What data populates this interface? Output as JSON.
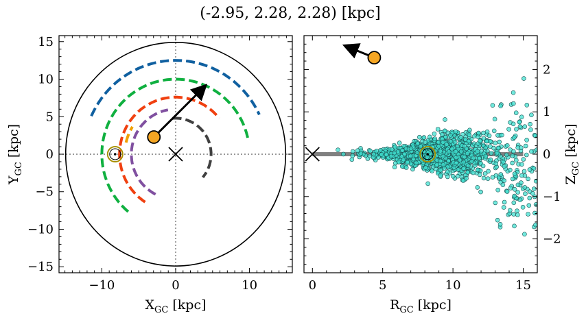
{
  "figure": {
    "title": "(-2.95, 2.28, 2.28) [kpc]"
  },
  "chart_data": [
    {
      "type": "line",
      "panel": "left",
      "xlabel_main": "X",
      "xlabel_sub": "GC",
      "xlabel_unit": " [kpc]",
      "ylabel_main": "Y",
      "ylabel_sub": "GC",
      "ylabel_unit": " [kpc]",
      "xlim": [
        -15.8,
        15.8
      ],
      "ylim": [
        -15.8,
        15.8
      ],
      "xticks": [
        -10,
        0,
        10
      ],
      "yticks": [
        -15,
        -10,
        -5,
        0,
        5,
        10,
        15
      ],
      "tick_labels_x": [
        "−10",
        "0",
        "10"
      ],
      "tick_labels_y": [
        "−15",
        "−10",
        "−5",
        "0",
        "5",
        "10",
        "15"
      ],
      "boundary_circle_radius": 14.9,
      "guide_lines": {
        "x0": true,
        "y0": true,
        "style": "dotted"
      },
      "arms": [
        {
          "color": "#1060a0",
          "radius": 12.5,
          "start_deg": 156,
          "end_deg": 25
        },
        {
          "color": "#10b040",
          "radius": 10.0,
          "start_deg": 210,
          "end_deg": 10
        },
        {
          "color": "#10b040",
          "radius": 10.0,
          "start_deg": 230,
          "end_deg": 212
        },
        {
          "color": "#f04010",
          "radius": 7.6,
          "start_deg": 237,
          "end_deg": 39
        },
        {
          "color": "#f0a000",
          "radius": 6.9,
          "start_deg": 167,
          "end_deg": 148
        },
        {
          "color": "#8050a0",
          "radius": 6.0,
          "start_deg": 243,
          "end_deg": 100
        },
        {
          "color": "#404040",
          "radius": 4.8,
          "start_deg": 95,
          "end_deg": -40
        }
      ],
      "sun": {
        "x": -8.2,
        "y": 0.0
      },
      "galactic_center": {
        "x": 0.0,
        "y": 0.0
      },
      "object": {
        "x": -2.95,
        "y": 2.28,
        "color": "#f5a623"
      },
      "velocity_arrow": {
        "x0": -2.95,
        "y0": 2.28,
        "x1": 3.9,
        "y1": 9.0
      }
    },
    {
      "type": "scatter",
      "panel": "right",
      "xlabel_main": "R",
      "xlabel_sub": "GC",
      "xlabel_unit": " [kpc]",
      "ylabel_main": "Z",
      "ylabel_sub": "GC",
      "ylabel_unit": " [kpc]",
      "xlim": [
        -0.6,
        16.0
      ],
      "ylim": [
        -2.8,
        2.8
      ],
      "xticks": [
        0,
        5,
        10,
        15
      ],
      "yticks": [
        -2,
        -1,
        0,
        1,
        2
      ],
      "tick_labels_x": [
        "0",
        "5",
        "10",
        "15"
      ],
      "tick_labels_y": [
        "−2",
        "−1",
        "0",
        "1",
        "2"
      ],
      "disk_line": {
        "x0": 0,
        "x1": 15,
        "z": 0,
        "color": "#808080"
      },
      "stars_color": "#40e0d0",
      "stars_edge": "#1a5050",
      "stars_count": 1400,
      "sun": {
        "r": 8.2,
        "z": 0.0
      },
      "galactic_center": {
        "r": 0.0,
        "z": 0.0
      },
      "object": {
        "r": 4.4,
        "z": 2.28,
        "color": "#f5a623"
      },
      "velocity_arrow": {
        "r0": 4.4,
        "z0": 2.28,
        "r1": 2.4,
        "z1": 2.55
      }
    }
  ]
}
